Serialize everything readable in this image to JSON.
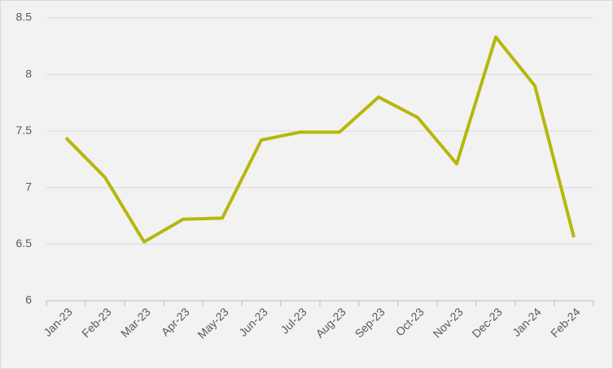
{
  "chart_data": {
    "type": "line",
    "categories": [
      "Jan-23",
      "Feb-23",
      "Mar-23",
      "Apr-23",
      "May-23",
      "Jun-23",
      "Jul-23",
      "Aug-23",
      "Sep-23",
      "Oct-23",
      "Nov-23",
      "Dec-23",
      "Jan-24",
      "Feb-24"
    ],
    "series": [
      {
        "color": "#b5b80c",
        "values": [
          7.44,
          7.09,
          6.52,
          6.72,
          6.73,
          7.42,
          7.49,
          7.49,
          7.8,
          7.62,
          7.21,
          8.33,
          7.9,
          6.56
        ]
      }
    ],
    "ylim": [
      6,
      8.5
    ],
    "yticks": [
      6,
      6.5,
      7,
      7.5,
      8,
      8.5
    ],
    "grid": true
  }
}
